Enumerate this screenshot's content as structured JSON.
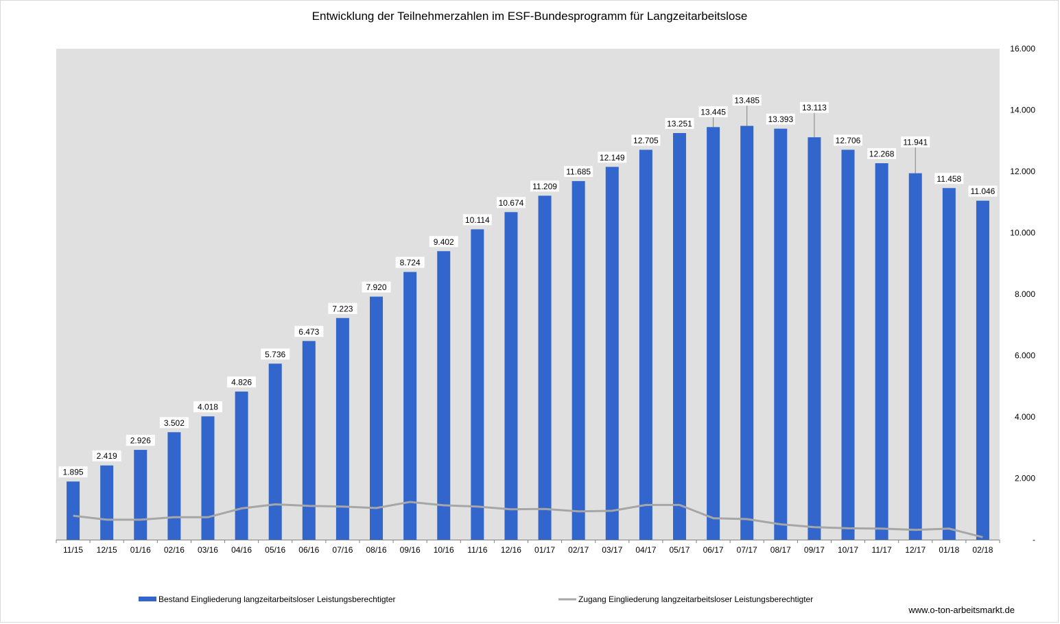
{
  "chart_data": {
    "type": "bar",
    "title": "Entwicklung der Teilnehmerzahlen im ESF-Bundesprogramm für Langzeitarbeitslose",
    "categories": [
      "11/15",
      "12/15",
      "01/16",
      "02/16",
      "03/16",
      "04/16",
      "05/16",
      "06/16",
      "07/16",
      "08/16",
      "09/16",
      "10/16",
      "11/16",
      "12/16",
      "01/17",
      "02/17",
      "03/17",
      "04/17",
      "05/17",
      "06/17",
      "07/17",
      "08/17",
      "09/17",
      "10/17",
      "11/17",
      "12/17",
      "01/18",
      "02/18"
    ],
    "ylim": [
      0,
      16000
    ],
    "yticks": [
      0,
      2000,
      4000,
      6000,
      8000,
      10000,
      12000,
      14000,
      16000
    ],
    "ytick_labels": [
      "-",
      "2.000",
      "4.000",
      "6.000",
      "8.000",
      "10.000",
      "12.000",
      "14.000",
      "16.000"
    ],
    "y_axis_side": "right",
    "grid": false,
    "legend_position": "bottom",
    "series": [
      {
        "name": "Bestand Eingliederung langzeitarbeitsloser Leistungsberechtigter",
        "type": "bar",
        "color": "#3366cc",
        "values": [
          1895,
          2419,
          2926,
          3502,
          4018,
          4826,
          5736,
          6473,
          7223,
          7920,
          8724,
          9402,
          10114,
          10674,
          11209,
          11685,
          12149,
          12705,
          13251,
          13445,
          13485,
          13393,
          13113,
          12706,
          12268,
          11941,
          11458,
          11046
        ],
        "labels": [
          "1.895",
          "2.419",
          "2.926",
          "3.502",
          "4.018",
          "4.826",
          "5.736",
          "6.473",
          "7.223",
          "7.920",
          "8.724",
          "9.402",
          "10.114",
          "10.674",
          "11.209",
          "11.685",
          "12.149",
          "12.705",
          "13.251",
          "13.445",
          "13.485",
          "13.393",
          "13.113",
          "12.706",
          "12.268",
          "11.941",
          "11.458",
          "11.046"
        ]
      },
      {
        "name": "Zugang Eingliederung langzeitarbeitsloser Leistungsberechtigter",
        "type": "line",
        "color": "#a6a6a6",
        "values": [
          780,
          650,
          650,
          730,
          730,
          1020,
          1150,
          1100,
          1080,
          1030,
          1230,
          1120,
          1080,
          990,
          1000,
          920,
          940,
          1130,
          1130,
          700,
          670,
          500,
          410,
          370,
          360,
          320,
          360,
          80
        ]
      }
    ]
  },
  "colors": {
    "plot_background": "#e0e0e0",
    "bar": "#3366cc",
    "line": "#a6a6a6"
  },
  "source": "www.o-ton-arbeitsmarkt.de"
}
